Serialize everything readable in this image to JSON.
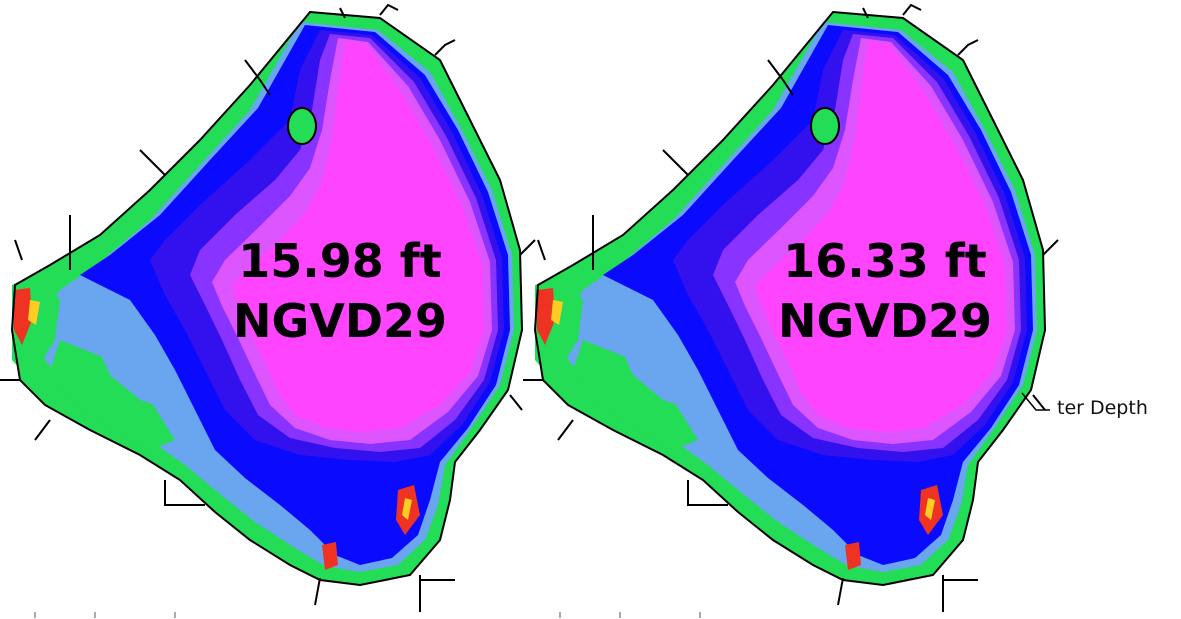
{
  "panels": [
    {
      "stage_value": "15.98 ft",
      "datum": "NGVD29"
    },
    {
      "stage_value": "16.33 ft",
      "datum": "NGVD29"
    }
  ],
  "legend": {
    "partial_label": "ter Depth"
  },
  "colors": {
    "deepest": "#ff44ff",
    "deep": "#dd55ff",
    "mid_deep": "#8833ff",
    "mid": "#3311ee",
    "shallow_blue": "#0a0aff",
    "light_blue": "#6aa6f0",
    "shallow_green": "#22dd55",
    "very_shallow": "#ee3322",
    "mid_yellow": "#ffcc22",
    "outline": "#000000"
  },
  "icons": [
    "creek-line-icon",
    "canal-line-icon"
  ]
}
